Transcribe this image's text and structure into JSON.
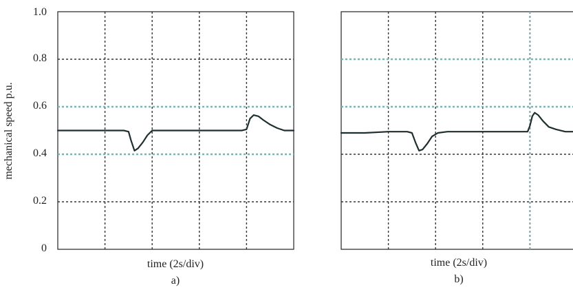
{
  "chart_data": [
    {
      "type": "line",
      "panel_label": "a)",
      "xlabel": "time (2s/div)",
      "ylabel": "mechanical speed p.u.",
      "ylim": [
        0,
        1.0
      ],
      "yticks": [
        "0",
        "0.2",
        "0.4",
        "0.6",
        "0.8",
        "1.0"
      ],
      "xlim": [
        0,
        10
      ],
      "grid": true,
      "reference_lines": [
        0.4,
        0.6
      ],
      "series": [
        {
          "x": [
            0,
            1,
            2,
            2.8,
            3.0,
            3.1,
            3.25,
            3.4,
            3.6,
            3.8,
            4.0,
            4.4,
            5,
            6,
            7,
            7.8,
            8.0,
            8.15,
            8.3,
            8.5,
            8.7,
            9.0,
            9.3,
            9.6,
            10
          ],
          "values": [
            0.5,
            0.5,
            0.5,
            0.5,
            0.495,
            0.46,
            0.415,
            0.425,
            0.45,
            0.48,
            0.5,
            0.5,
            0.5,
            0.5,
            0.5,
            0.5,
            0.505,
            0.55,
            0.565,
            0.56,
            0.545,
            0.525,
            0.51,
            0.5,
            0.5
          ]
        }
      ]
    },
    {
      "type": "line",
      "panel_label": "b)",
      "xlabel": "time (2s/div)",
      "ylabel": "",
      "ylim": [
        0,
        1.0
      ],
      "xlim": [
        0,
        10
      ],
      "grid": true,
      "reference_lines": [
        0.6,
        0.8
      ],
      "series": [
        {
          "x": [
            0,
            1,
            2,
            2.8,
            3.0,
            3.15,
            3.3,
            3.45,
            3.65,
            3.85,
            4.1,
            4.5,
            5,
            6,
            7,
            7.9,
            8.0,
            8.1,
            8.2,
            8.35,
            8.55,
            8.8,
            9.1,
            9.5,
            10
          ],
          "values": [
            0.49,
            0.49,
            0.495,
            0.495,
            0.49,
            0.45,
            0.415,
            0.42,
            0.445,
            0.475,
            0.49,
            0.495,
            0.495,
            0.495,
            0.495,
            0.495,
            0.52,
            0.56,
            0.575,
            0.565,
            0.54,
            0.515,
            0.505,
            0.495,
            0.495
          ]
        }
      ]
    }
  ]
}
